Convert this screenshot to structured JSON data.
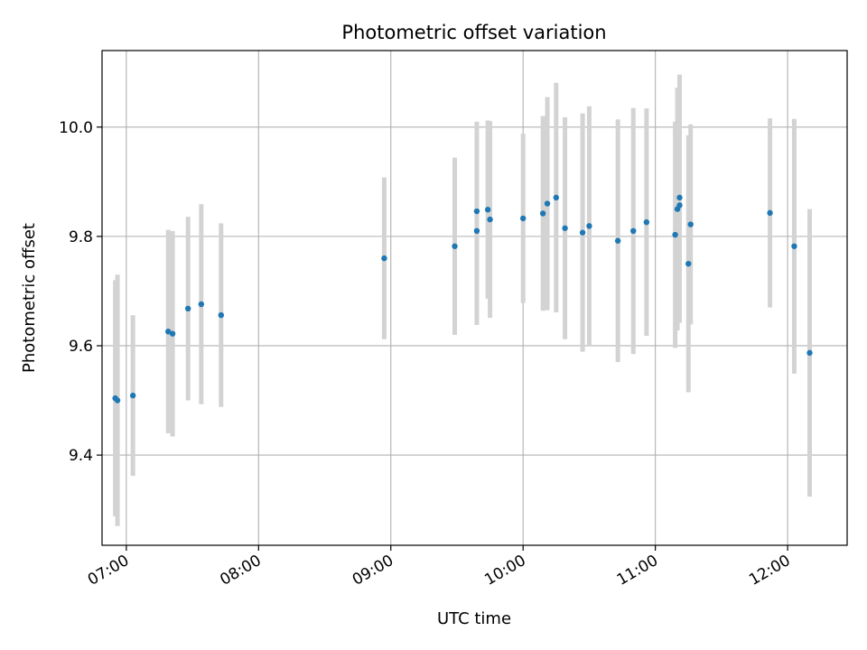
{
  "chart_data": {
    "type": "scatter",
    "title": "Photometric offset variation",
    "xlabel": "UTC time",
    "ylabel": "Photometric offset",
    "x_unit": "UTC time of day (hh:mm)",
    "xlim": [
      "06:49",
      "12:27"
    ],
    "ylim": [
      9.235,
      10.14
    ],
    "x_ticks": [
      "07:00",
      "08:00",
      "09:00",
      "10:00",
      "11:00",
      "12:00"
    ],
    "y_ticks": [
      9.4,
      9.6,
      9.8,
      10.0
    ],
    "y_tick_labels": [
      "9.4",
      "9.6",
      "9.8",
      "10.0"
    ],
    "grid": true,
    "marker_color": "#1f77b4",
    "errorbar_color": "#d3d3d3",
    "points": [
      {
        "x": "06:55",
        "y": 9.504,
        "err": 0.216
      },
      {
        "x": "06:56",
        "y": 9.5,
        "err": 0.23
      },
      {
        "x": "07:03",
        "y": 9.509,
        "err": 0.147
      },
      {
        "x": "07:19",
        "y": 9.626,
        "err": 0.186
      },
      {
        "x": "07:21",
        "y": 9.622,
        "err": 0.188
      },
      {
        "x": "07:28",
        "y": 9.668,
        "err": 0.168
      },
      {
        "x": "07:34",
        "y": 9.676,
        "err": 0.183
      },
      {
        "x": "07:43",
        "y": 9.656,
        "err": 0.168
      },
      {
        "x": "08:57",
        "y": 9.76,
        "err": 0.148
      },
      {
        "x": "09:29",
        "y": 9.782,
        "err": 0.162
      },
      {
        "x": "09:39",
        "y": 9.846,
        "err": 0.164
      },
      {
        "x": "09:39",
        "y": 9.81,
        "err": 0.172
      },
      {
        "x": "09:44",
        "y": 9.849,
        "err": 0.163
      },
      {
        "x": "09:45",
        "y": 9.831,
        "err": 0.18
      },
      {
        "x": "10:00",
        "y": 9.833,
        "err": 0.155
      },
      {
        "x": "10:09",
        "y": 9.842,
        "err": 0.178
      },
      {
        "x": "10:11",
        "y": 9.86,
        "err": 0.195
      },
      {
        "x": "10:15",
        "y": 9.871,
        "err": 0.21
      },
      {
        "x": "10:19",
        "y": 9.815,
        "err": 0.203
      },
      {
        "x": "10:27",
        "y": 9.807,
        "err": 0.218
      },
      {
        "x": "10:30",
        "y": 9.819,
        "err": 0.219
      },
      {
        "x": "10:43",
        "y": 9.792,
        "err": 0.222
      },
      {
        "x": "10:50",
        "y": 9.81,
        "err": 0.225
      },
      {
        "x": "10:56",
        "y": 9.826,
        "err": 0.208
      },
      {
        "x": "11:09",
        "y": 9.803,
        "err": 0.207
      },
      {
        "x": "11:10",
        "y": 9.85,
        "err": 0.222
      },
      {
        "x": "11:11",
        "y": 9.857,
        "err": 0.215
      },
      {
        "x": "11:11",
        "y": 9.871,
        "err": 0.225
      },
      {
        "x": "11:15",
        "y": 9.75,
        "err": 0.235
      },
      {
        "x": "11:16",
        "y": 9.822,
        "err": 0.183
      },
      {
        "x": "11:52",
        "y": 9.843,
        "err": 0.173
      },
      {
        "x": "12:03",
        "y": 9.782,
        "err": 0.233
      },
      {
        "x": "12:10",
        "y": 9.587,
        "err": 0.263
      }
    ]
  }
}
